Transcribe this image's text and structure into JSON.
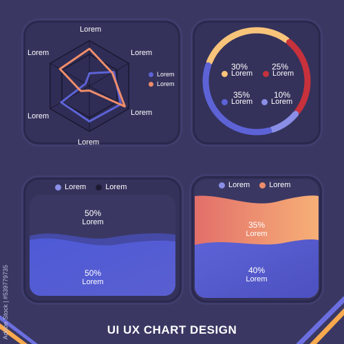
{
  "footer": {
    "title": "UI UX CHART DESIGN"
  },
  "watermark": {
    "text": "Adobe Stock | #539779735"
  },
  "colors": {
    "background": "#3a3863",
    "blue": "#5d63d6",
    "orange": "#f08d6a",
    "red": "#c7313c",
    "yellow": "#f8c47a",
    "lilac": "#8a8ee6"
  },
  "chart_data": [
    {
      "type": "radar",
      "axes": [
        "Lorem",
        "Lorem",
        "Lorem",
        "Lorem",
        "Lorem",
        "Lorem"
      ],
      "series": [
        {
          "name": "Lorem",
          "color": "#5d63d6",
          "values": [
            0.28,
            0.62,
            0.8,
            0.78,
            0.72,
            0.1
          ]
        },
        {
          "name": "Lorem",
          "color": "#f08d6a",
          "values": [
            0.82,
            0.58,
            0.9,
            0.1,
            0.22,
            0.75
          ]
        }
      ],
      "legend": "right"
    },
    {
      "type": "pie",
      "style": "donut",
      "slices": [
        {
          "label": "Lorem",
          "value": 30,
          "display": "30%",
          "color": "#f8c47a"
        },
        {
          "label": "Lorem",
          "value": 25,
          "display": "25%",
          "color": "#c7313c"
        },
        {
          "label": "Lorem",
          "value": 10,
          "display": "10%",
          "color": "#8a8ee6"
        },
        {
          "label": "Lorem",
          "value": 35,
          "display": "35%",
          "color": "#5d63d6"
        }
      ]
    },
    {
      "type": "area",
      "series": [
        {
          "name": "Lorem",
          "color": "#5d63d6",
          "value": 50,
          "display": "50%"
        },
        {
          "name": "Lorem",
          "color": "#1d1b33",
          "value": 50,
          "display": "50%"
        }
      ],
      "region_labels": [
        {
          "display": "50%",
          "label": "Lorem"
        },
        {
          "display": "50%",
          "label": "Lorem"
        }
      ],
      "legend": "top"
    },
    {
      "type": "area",
      "series": [
        {
          "name": "Lorem",
          "color": "#5d63d6",
          "value": 40,
          "display": "40%"
        },
        {
          "name": "Lorem",
          "color": "#f08d6a",
          "value": 35,
          "display": "35%"
        }
      ],
      "region_labels": [
        {
          "display": "35%",
          "label": "Lorem"
        },
        {
          "display": "40%",
          "label": "Lorem"
        }
      ],
      "legend": "top"
    }
  ]
}
